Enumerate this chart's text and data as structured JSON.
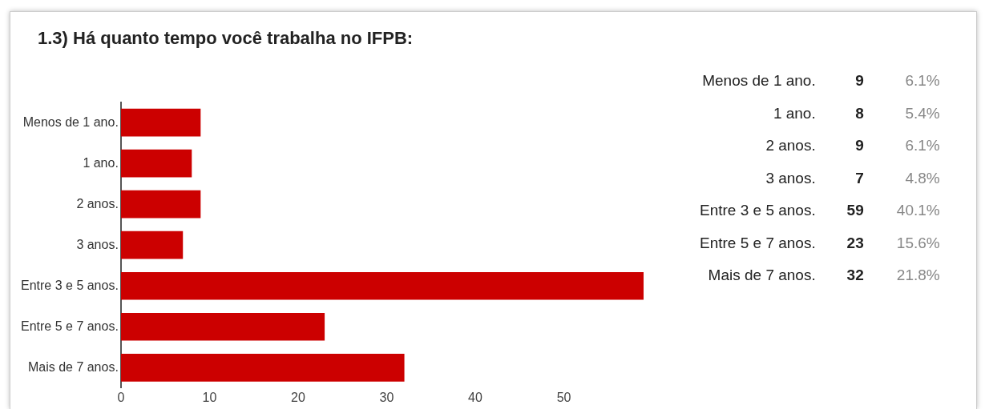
{
  "chart_data": [
    {
      "type": "bar",
      "orientation": "horizontal",
      "title": "1.3) Há quanto tempo você trabalha no IFPB:",
      "categories": [
        "Menos de 1 ano.",
        "1 ano.",
        "2 anos.",
        "3 anos.",
        "Entre 3 e 5 anos.",
        "Entre 5 e 7 anos.",
        "Mais de 7 anos."
      ],
      "values": [
        9,
        8,
        9,
        7,
        59,
        23,
        32
      ],
      "color": "#cc0000",
      "xlim": [
        0,
        59
      ],
      "xticks": [
        0,
        10,
        20,
        30,
        40,
        50
      ],
      "grid": false,
      "legend": false
    },
    {
      "type": "other",
      "annotations": [
        "Menos de 1 ano.",
        "9",
        "6.1%",
        "1 ano.",
        "8",
        "5.4%",
        "2 anos.",
        "9",
        "6.1%",
        "3 anos.",
        "7",
        "4.8%",
        "Entre 3 e 5 anos.",
        "59",
        "40.1%",
        "Entre 5 e 7 anos.",
        "23",
        "15.6%",
        "Mais de 7 anos.",
        "32",
        "21.8%"
      ]
    }
  ]
}
